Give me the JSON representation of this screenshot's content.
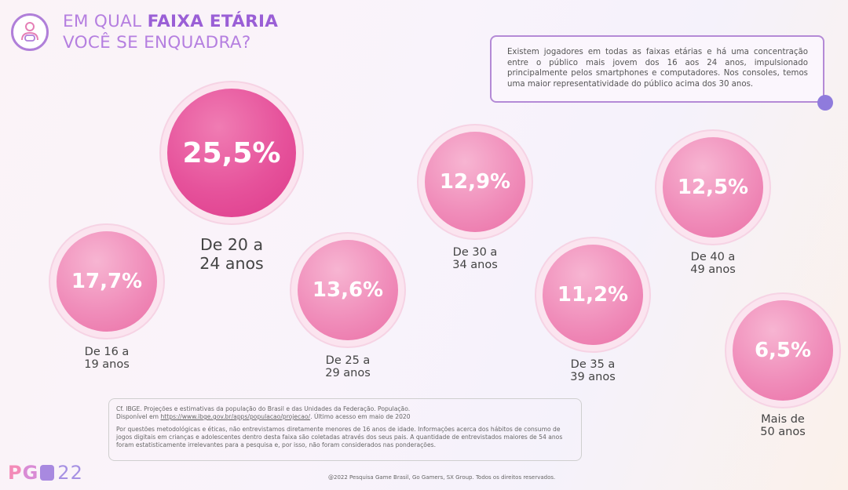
{
  "header": {
    "title_prefix": "EM QUAL ",
    "title_highlight": "FAIXA ETÁRIA",
    "title_line2": "VOCÊ SE ENQUADRA?"
  },
  "info_text": "Existem jogadores em todas as faixas etárias e há uma concentração entre o público mais jovem dos 16 aos 24 anos, impulsionado principalmente pelos smartphones e computadores. Nos consoles, temos uma maior representatividade do público acima dos 30 anos.",
  "chart_data": {
    "type": "bubble",
    "title": "Em qual faixa etária você se enquadra?",
    "unit": "%",
    "categories": [
      "De 16 a 19 anos",
      "De 20 a 24 anos",
      "De 25 a 29 anos",
      "De 30 a 34 anos",
      "De 35 a 39 anos",
      "De 40 a 49 anos",
      "Mais de 50 anos"
    ],
    "values": [
      17.7,
      25.5,
      13.6,
      12.9,
      11.2,
      12.5,
      6.5
    ],
    "value_labels": [
      "17,7%",
      "25,5%",
      "13,6%",
      "12,9%",
      "11,2%",
      "12,5%",
      "6,5%"
    ],
    "label_lines": [
      [
        "De 16 a",
        "19 anos"
      ],
      [
        "De 20 a",
        "24 anos"
      ],
      [
        "De 25 a",
        "29 anos"
      ],
      [
        "De 30 a",
        "34 anos"
      ],
      [
        "De 35 a",
        "39 anos"
      ],
      [
        "De 40 a",
        "49 anos"
      ],
      [
        "Mais de",
        "50 anos"
      ]
    ],
    "highlight_index": 1
  },
  "notes": {
    "source_line1": "Cf. IBGE. Projeções e estimativas da população do Brasil e das Unidades da Federação. População.",
    "source_prefix": "Disponível em ",
    "source_link": "https://www.ibge.gov.br/apps/populacao/projecao/",
    "source_suffix": ". Último acesso em maio de 2020",
    "methodology": "Por questões metodológicas e éticas, não entrevistamos diretamente menores de 16 anos de idade. Informações acerca dos hábitos de consumo de jogos digitais em crianças e adolescentes dentro desta faixa são coletadas através dos seus pais. A quantidade de entrevistados maiores de 54 anos foram estatisticamente irrelevantes para a pesquisa e, por isso, não foram considerados nas ponderações."
  },
  "logo": {
    "p": "P",
    "g": "G",
    "num": "22"
  },
  "footer": "@2022 Pesquisa Game Brasil, Go Gamers, SX Group. Todos os direitos reservados."
}
